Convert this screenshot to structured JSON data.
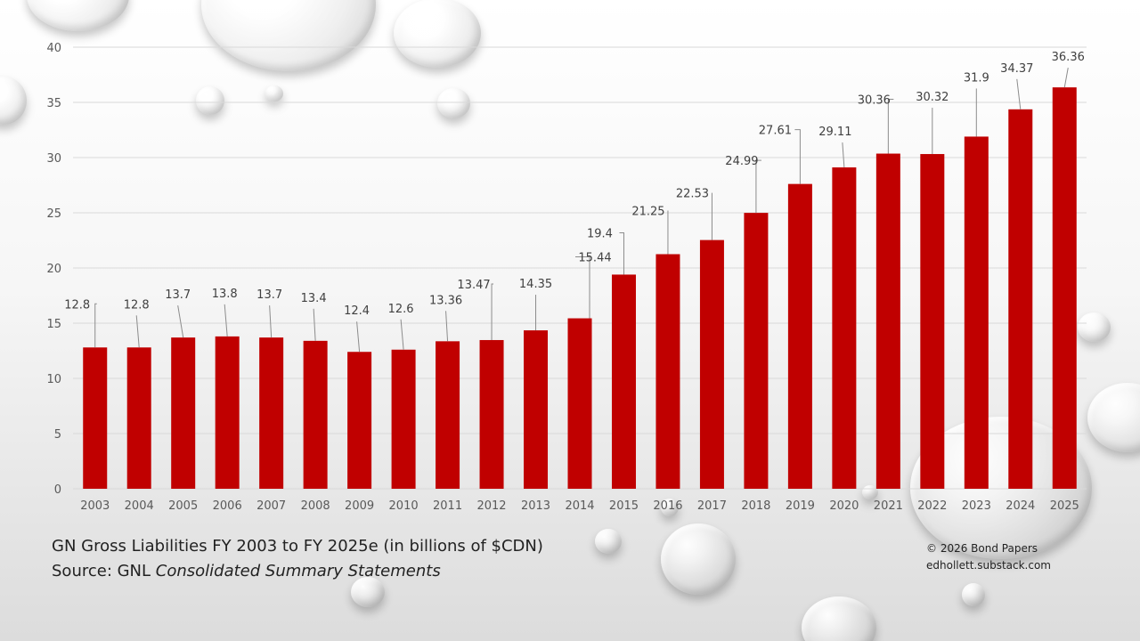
{
  "colors": {
    "bar": "#c00000",
    "grid": "#d9d9d9",
    "tick_text": "#595959",
    "label_text": "#404040",
    "leader": "#8c8c8c"
  },
  "caption": {
    "line1": "GN Gross Liabilities FY 2003 to FY 2025e (in billions of $CDN)",
    "line2_prefix": "Source:  GNL ",
    "line2_italic": "Consolidated Summary Statements"
  },
  "credit": {
    "line1": "© 2026 Bond Papers",
    "line2": "edhollett.substack.com"
  },
  "chart_data": {
    "type": "bar",
    "categories": [
      "2003",
      "2004",
      "2005",
      "2006",
      "2007",
      "2008",
      "2009",
      "2010",
      "2011",
      "2012",
      "2013",
      "2014",
      "2015",
      "2016",
      "2017",
      "2018",
      "2019",
      "2020",
      "2021",
      "2022",
      "2023",
      "2024",
      "2025"
    ],
    "values": [
      12.8,
      12.8,
      13.7,
      13.8,
      13.7,
      13.4,
      12.4,
      12.6,
      13.36,
      13.47,
      14.35,
      15.44,
      19.4,
      21.25,
      22.53,
      24.99,
      27.61,
      29.11,
      30.36,
      30.32,
      31.9,
      34.37,
      36.36
    ],
    "data_labels": [
      "12.8",
      "12.8",
      "13.7",
      "13.8",
      "13.7",
      "13.4",
      "12.4",
      "12.6",
      "13.36",
      "13.47",
      "14.35",
      "15.44",
      "19.4",
      "21.25",
      "22.53",
      "24.99",
      "27.61",
      "29.11",
      "30.36",
      "30.32",
      "31.9",
      "34.37",
      "36.36"
    ],
    "yticks": [
      "0",
      "5",
      "10",
      "15",
      "20",
      "25",
      "30",
      "35",
      "40"
    ],
    "ylim": [
      0,
      40
    ],
    "grid": true,
    "title": "",
    "xlabel": "",
    "ylabel": ""
  }
}
